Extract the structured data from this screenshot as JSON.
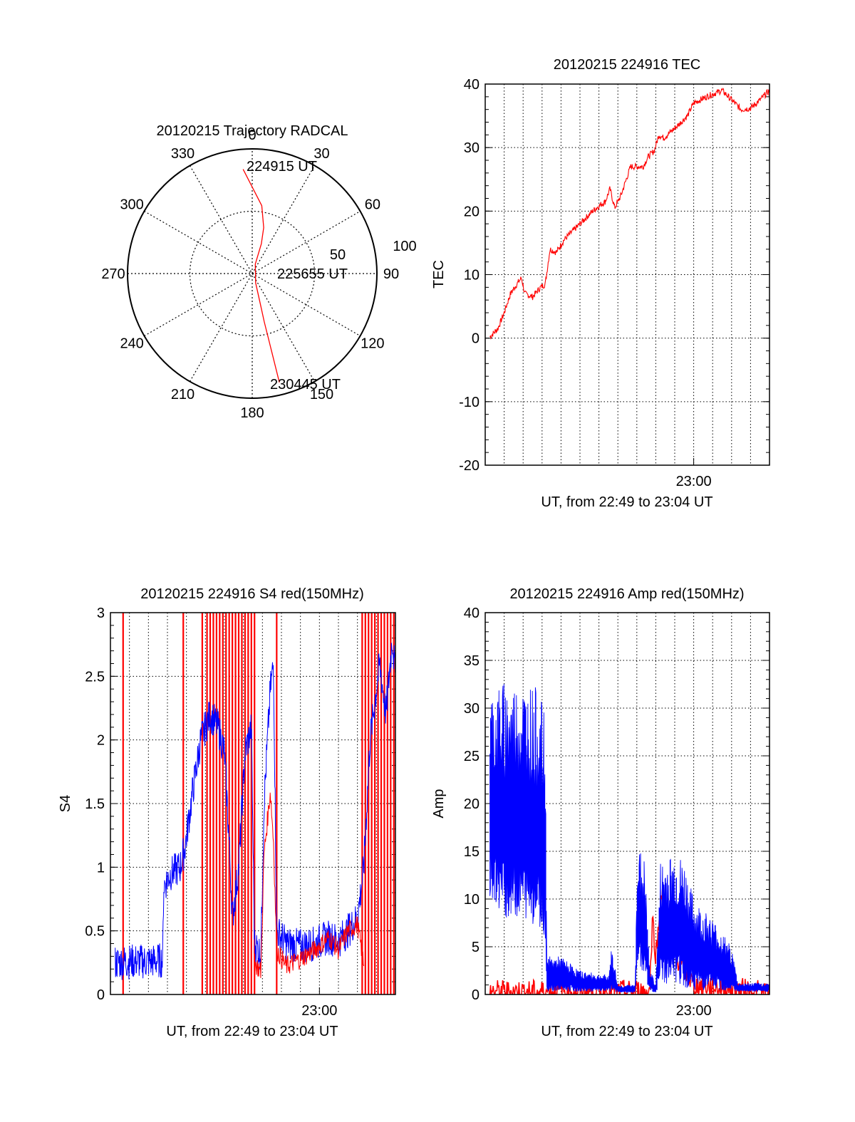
{
  "colors": {
    "red": "#ff0000",
    "blue": "#0000ff",
    "axis": "#000000",
    "grid": "#000000"
  },
  "chart_data": [
    {
      "type": "polar",
      "title": "20120215 Trajectory RADCAL",
      "angle_labels": [
        "0",
        "30",
        "60",
        "90",
        "120",
        "150",
        "180",
        "210",
        "240",
        "270",
        "300",
        "330"
      ],
      "radius_labels": [
        "50",
        "100"
      ],
      "grid": true,
      "series": [
        {
          "color": "red",
          "points": [
            [
              355,
              84
            ],
            [
              8,
              55
            ],
            [
              14,
              38
            ],
            [
              17,
              25
            ],
            [
              18,
              8
            ],
            [
              160,
              8
            ],
            [
              165,
              25
            ],
            [
              166,
              40
            ],
            [
              166,
              55
            ],
            [
              166,
              90
            ]
          ]
        }
      ],
      "annotations": [
        "224915 UT",
        "225655 UT",
        "230445 UT"
      ]
    },
    {
      "type": "line",
      "title": "20120215 224916 TEC",
      "xlabel": "UT, from 22:49 to 23:04 UT",
      "ylabel": "TEC",
      "xlim": [
        "22:49",
        "23:04"
      ],
      "ylim": [
        -20,
        40
      ],
      "xtick_labels": [
        "23:00"
      ],
      "ytick_labels": [
        "-20",
        "-10",
        "0",
        "10",
        "20",
        "30",
        "40"
      ],
      "grid": true,
      "series": [
        {
          "color": "red",
          "points": [
            [
              "22:49:15",
              0.2
            ],
            [
              "22:49:40",
              1.5
            ],
            [
              "22:50:00",
              4
            ],
            [
              "22:50:20",
              7
            ],
            [
              "22:50:40",
              8.5
            ],
            [
              "22:50:55",
              9.5
            ],
            [
              "22:51:05",
              7
            ],
            [
              "22:51:30",
              6.5
            ],
            [
              "22:51:55",
              8
            ],
            [
              "22:52:10",
              8.5
            ],
            [
              "22:52:25",
              14
            ],
            [
              "22:52:45",
              13.5
            ],
            [
              "22:53:10",
              15.5
            ],
            [
              "22:53:40",
              17
            ],
            [
              "22:54:10",
              18.5
            ],
            [
              "22:54:40",
              20
            ],
            [
              "22:55:05",
              21
            ],
            [
              "22:55:20",
              21.5
            ],
            [
              "22:55:35",
              23.5
            ],
            [
              "22:55:50",
              20.5
            ],
            [
              "22:56:10",
              22.5
            ],
            [
              "22:56:40",
              27
            ],
            [
              "22:57:20",
              27
            ],
            [
              "22:57:35",
              28.5
            ],
            [
              "22:57:55",
              29.5
            ],
            [
              "22:58:10",
              32
            ],
            [
              "22:58:25",
              31.5
            ],
            [
              "22:59:10",
              33.5
            ],
            [
              "22:59:40",
              35
            ],
            [
              "23:00:00",
              37
            ],
            [
              "23:00:40",
              38
            ],
            [
              "23:01:30",
              39
            ],
            [
              "23:02:00",
              37.5
            ],
            [
              "23:02:30",
              36
            ],
            [
              "23:03:00",
              36.2
            ],
            [
              "23:03:30",
              37.5
            ],
            [
              "23:04:00",
              39
            ]
          ]
        }
      ]
    },
    {
      "type": "line",
      "title": "20120215 224916 S4 red(150MHz)",
      "xlabel": "UT, from 22:49 to 23:04 UT",
      "ylabel": "S4",
      "xlim": [
        "22:49",
        "23:04"
      ],
      "ylim": [
        0,
        3
      ],
      "xtick_labels": [
        "23:00"
      ],
      "ytick_labels": [
        "0",
        "0.5",
        "1",
        "1.5",
        "2",
        "2.5",
        "3"
      ],
      "grid": true,
      "series": [
        {
          "color": "blue",
          "points": [
            [
              "22:49:15",
              0.25
            ],
            [
              "22:50:10",
              0.26
            ],
            [
              "22:51:00",
              0.26
            ],
            [
              "22:51:45",
              0.27
            ],
            [
              "22:51:48",
              0.85
            ],
            [
              "22:52:10",
              0.95
            ],
            [
              "22:52:40",
              1.0
            ],
            [
              "22:52:55",
              1.15
            ],
            [
              "22:53:20",
              1.6
            ],
            [
              "22:53:45",
              2.0
            ],
            [
              "22:54:15",
              2.2
            ],
            [
              "22:54:40",
              2.1
            ],
            [
              "22:55:00",
              1.9
            ],
            [
              "22:55:15",
              1.2
            ],
            [
              "22:55:25",
              0.6
            ],
            [
              "22:55:45",
              1.0
            ],
            [
              "22:56:05",
              1.9
            ],
            [
              "22:56:25",
              2.1
            ],
            [
              "22:56:35",
              0.4
            ],
            [
              "22:56:55",
              0.32
            ],
            [
              "22:57:05",
              1.5
            ],
            [
              "22:57:25",
              2.4
            ],
            [
              "22:57:35",
              2.6
            ],
            [
              "22:57:45",
              0.5
            ],
            [
              "22:58:15",
              0.4
            ],
            [
              "22:59:00",
              0.38
            ],
            [
              "22:59:45",
              0.4
            ],
            [
              "23:00:30",
              0.45
            ],
            [
              "23:01:00",
              0.42
            ],
            [
              "23:01:30",
              0.5
            ],
            [
              "23:02:00",
              0.6
            ],
            [
              "23:02:20",
              1.0
            ],
            [
              "23:02:40",
              2.0
            ],
            [
              "23:03:10",
              2.6
            ],
            [
              "23:03:30",
              2.2
            ],
            [
              "23:03:50",
              2.8
            ],
            [
              "23:04:00",
              2.5
            ]
          ]
        },
        {
          "color": "red",
          "points": [
            [
              "22:56:35",
              0.25
            ],
            [
              "22:56:55",
              0.18
            ],
            [
              "22:57:05",
              1.1
            ],
            [
              "22:57:25",
              1.6
            ],
            [
              "22:57:35",
              1.2
            ],
            [
              "22:57:45",
              0.35
            ],
            [
              "22:58:15",
              0.22
            ],
            [
              "22:59:00",
              0.28
            ],
            [
              "22:59:45",
              0.35
            ],
            [
              "23:00:30",
              0.45
            ],
            [
              "23:01:00",
              0.35
            ],
            [
              "23:01:30",
              0.5
            ],
            [
              "23:02:00",
              0.55
            ],
            [
              "23:02:20",
              0.25
            ]
          ]
        }
      ],
      "red_spike_times": [
        "22:49:40",
        "22:52:50",
        "22:53:50",
        "22:54:05",
        "22:54:15",
        "22:54:25",
        "22:54:35",
        "22:54:45",
        "22:54:55",
        "22:55:05",
        "22:55:15",
        "22:55:25",
        "22:55:35",
        "22:55:45",
        "22:55:55",
        "22:56:05",
        "22:56:15",
        "22:56:25",
        "22:56:35",
        "22:57:45",
        "23:02:15",
        "23:02:25",
        "23:02:35",
        "23:02:45",
        "23:02:55",
        "23:03:05",
        "23:03:15",
        "23:03:25",
        "23:03:35",
        "23:03:45",
        "23:03:55"
      ]
    },
    {
      "type": "line",
      "title": "20120215 224916 Amp red(150MHz)",
      "xlabel": "UT, from 22:49 to 23:04 UT",
      "ylabel": "Amp",
      "xlim": [
        "22:49",
        "23:04"
      ],
      "ylim": [
        0,
        40
      ],
      "xtick_labels": [
        "23:00"
      ],
      "ytick_labels": [
        "0",
        "5",
        "10",
        "15",
        "20",
        "25",
        "30",
        "35",
        "40"
      ],
      "grid": true,
      "series": [
        {
          "color": "blue",
          "name_hint": "envelope",
          "upper": [
            [
              "22:49:15",
              32
            ],
            [
              "22:50:00",
              33
            ],
            [
              "22:51:00",
              33
            ],
            [
              "22:51:50",
              32
            ],
            [
              "22:52:10",
              29
            ],
            [
              "22:52:15",
              4
            ],
            [
              "22:53:00",
              4
            ],
            [
              "22:54:00",
              2.5
            ],
            [
              "22:55:30",
              2
            ],
            [
              "22:55:40",
              5
            ],
            [
              "22:56:00",
              1
            ],
            [
              "22:56:55",
              1
            ],
            [
              "22:57:00",
              16
            ],
            [
              "22:57:25",
              14
            ],
            [
              "22:57:40",
              3
            ],
            [
              "22:58:00",
              1
            ],
            [
              "22:58:15",
              14
            ],
            [
              "22:59:00",
              15
            ],
            [
              "22:59:30",
              14
            ],
            [
              "23:00:00",
              10
            ],
            [
              "23:01:00",
              8
            ],
            [
              "23:02:00",
              5
            ],
            [
              "23:02:20",
              1.2
            ],
            [
              "23:04:00",
              1.2
            ]
          ],
          "lower": [
            [
              "22:49:15",
              10
            ],
            [
              "22:50:00",
              8
            ],
            [
              "22:51:00",
              8
            ],
            [
              "22:51:50",
              7
            ],
            [
              "22:52:10",
              6
            ],
            [
              "22:52:15",
              0.3
            ],
            [
              "22:53:00",
              0.3
            ],
            [
              "22:55:30",
              0.3
            ],
            [
              "22:56:00",
              0.2
            ],
            [
              "22:56:55",
              0.2
            ],
            [
              "22:57:00",
              3
            ],
            [
              "22:57:25",
              2
            ],
            [
              "22:57:40",
              0.3
            ],
            [
              "22:58:00",
              0.2
            ],
            [
              "22:58:15",
              1
            ],
            [
              "22:59:00",
              1
            ],
            [
              "23:00:00",
              0.5
            ],
            [
              "23:02:20",
              0.3
            ],
            [
              "23:04:00",
              0.3
            ]
          ]
        },
        {
          "color": "red",
          "points": [
            [
              "22:49:15",
              0.3
            ],
            [
              "22:52:12",
              0.3
            ],
            [
              "22:57:40",
              0.3
            ],
            [
              "22:57:50",
              8
            ],
            [
              "22:58:00",
              4
            ],
            [
              "22:58:20",
              11
            ],
            [
              "22:58:40",
              6
            ],
            [
              "22:59:20",
              3
            ],
            [
              "23:00:00",
              1
            ],
            [
              "23:04:00",
              0.2
            ]
          ]
        }
      ]
    }
  ]
}
